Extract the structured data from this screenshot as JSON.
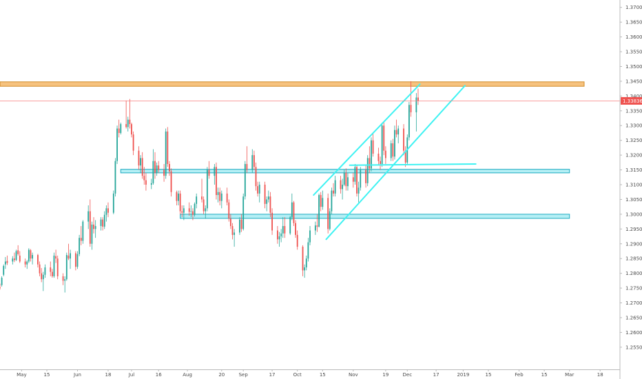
{
  "chart_data": {
    "type": "candlestick",
    "symbol_pair_axis": "right",
    "ylim": [
      1.2475,
      1.3725
    ],
    "y_ticks": [
      "1.25500",
      "1.26000",
      "1.26500",
      "1.27000",
      "1.27500",
      "1.28000",
      "1.28500",
      "1.29000",
      "1.29500",
      "1.30000",
      "1.30500",
      "1.31000",
      "1.31500",
      "1.32000",
      "1.32500",
      "1.33000",
      "1.33500",
      "1.34000",
      "1.34500",
      "1.35000",
      "1.35500",
      "1.36000",
      "1.36500",
      "1.37000"
    ],
    "x_ticks": [
      {
        "label": "May",
        "day": 0
      },
      {
        "label": "15",
        "day": 14
      },
      {
        "label": "Jun",
        "day": 31
      },
      {
        "label": "18",
        "day": 48
      },
      {
        "label": "Jul",
        "day": 61
      },
      {
        "label": "16",
        "day": 76
      },
      {
        "label": "Aug",
        "day": 92
      },
      {
        "label": "20",
        "day": 111
      },
      {
        "label": "Sep",
        "day": 123
      },
      {
        "label": "17",
        "day": 139
      },
      {
        "label": "Oct",
        "day": 153
      },
      {
        "label": "15",
        "day": 167
      },
      {
        "label": "Nov",
        "day": 184
      },
      {
        "label": "19",
        "day": 202
      },
      {
        "label": "Dec",
        "day": 214
      },
      {
        "label": "17",
        "day": 230
      },
      {
        "label": "2019",
        "day": 245
      },
      {
        "label": "15",
        "day": 259
      },
      {
        "label": "Feb",
        "day": 276
      },
      {
        "label": "15",
        "day": 290
      },
      {
        "label": "Mar",
        "day": 304
      },
      {
        "label": "18",
        "day": 321
      }
    ],
    "x_range_days": [
      -12,
      332
    ],
    "last_price": "1.33836",
    "last_price_value": 1.33836,
    "colors": {
      "up": "#26a69a",
      "down": "#ef5350",
      "channel": "#3ef2f2",
      "zone_fill": "#a8ecf3",
      "zone_border": "#1ba9c0",
      "resistance_fill": "#f6c27e",
      "resistance_border": "#d08b27",
      "price_line": "#f77b7b",
      "axis": "#b8b8b8",
      "text": "#4a4a4a"
    },
    "resistance_zone": {
      "y_low": 1.3433,
      "y_high": 1.3448
    },
    "support_zones": [
      {
        "x_start": 55,
        "y_low": 1.314,
        "y_high": 1.3152
      },
      {
        "x_start": 88,
        "y_low": 1.2986,
        "y_high": 1.3
      }
    ],
    "support_zone_x_end": 304,
    "channel_lines": [
      {
        "x1": 162,
        "y1": 1.3065,
        "x2": 221,
        "y2": 1.344
      },
      {
        "x1": 169,
        "y1": 1.2915,
        "x2": 246,
        "y2": 1.3435
      },
      {
        "x1": 182,
        "y1": 1.3166,
        "x2": 252,
        "y2": 1.317
      }
    ],
    "candles": [
      [
        -12,
        1.2752,
        1.2765,
        1.2745,
        1.275
      ],
      [
        -11,
        1.276,
        1.279,
        1.2755,
        1.2785
      ],
      [
        -10,
        1.2795,
        1.283,
        1.279,
        1.2825
      ],
      [
        -9,
        1.283,
        1.2855,
        1.2815,
        1.284
      ],
      [
        -8,
        1.2842,
        1.286,
        1.2828,
        1.2835
      ],
      [
        -5,
        1.284,
        1.2858,
        1.283,
        1.285
      ],
      [
        -4,
        1.285,
        1.287,
        1.2838,
        1.2845
      ],
      [
        -3,
        1.2845,
        1.288,
        1.2842,
        1.2875
      ],
      [
        -2,
        1.2878,
        1.2895,
        1.286,
        1.2865
      ],
      [
        -1,
        1.286,
        1.2875,
        1.2835,
        1.284
      ],
      [
        2,
        1.284,
        1.285,
        1.282,
        1.283
      ],
      [
        3,
        1.283,
        1.2845,
        1.2815,
        1.284
      ],
      [
        4,
        1.284,
        1.2885,
        1.2835,
        1.288
      ],
      [
        5,
        1.2878,
        1.2882,
        1.284,
        1.285
      ],
      [
        6,
        1.285,
        1.287,
        1.283,
        1.2862
      ],
      [
        9,
        1.2862,
        1.2866,
        1.282,
        1.283
      ],
      [
        10,
        1.283,
        1.284,
        1.279,
        1.28
      ],
      [
        11,
        1.28,
        1.2818,
        1.277,
        1.278
      ],
      [
        12,
        1.278,
        1.2805,
        1.274,
        1.2795
      ],
      [
        13,
        1.2795,
        1.283,
        1.2785,
        1.282
      ],
      [
        16,
        1.282,
        1.284,
        1.279,
        1.2805
      ],
      [
        17,
        1.2805,
        1.2815,
        1.2785,
        1.279
      ],
      [
        18,
        1.279,
        1.287,
        1.2785,
        1.286
      ],
      [
        19,
        1.2858,
        1.288,
        1.2835,
        1.285
      ],
      [
        20,
        1.285,
        1.286,
        1.278,
        1.279
      ],
      [
        23,
        1.279,
        1.28,
        1.276,
        1.2775
      ],
      [
        24,
        1.2775,
        1.279,
        1.2735,
        1.278
      ],
      [
        25,
        1.278,
        1.287,
        1.2775,
        1.2862
      ],
      [
        26,
        1.286,
        1.29,
        1.2845,
        1.285
      ],
      [
        27,
        1.285,
        1.288,
        1.2815,
        1.2868
      ],
      [
        30,
        1.2868,
        1.2875,
        1.281,
        1.2822
      ],
      [
        31,
        1.2822,
        1.2875,
        1.2815,
        1.2865
      ],
      [
        32,
        1.2865,
        1.293,
        1.2858,
        1.292
      ],
      [
        33,
        1.292,
        1.296,
        1.2895,
        1.291
      ],
      [
        34,
        1.291,
        1.298,
        1.29,
        1.2975
      ],
      [
        37,
        1.2975,
        1.303,
        1.295,
        1.301
      ],
      [
        38,
        1.301,
        1.305,
        1.289,
        1.29
      ],
      [
        39,
        1.29,
        1.2975,
        1.288,
        1.2965
      ],
      [
        40,
        1.2965,
        1.299,
        1.2935,
        1.295
      ],
      [
        41,
        1.295,
        1.298,
        1.292,
        1.296
      ],
      [
        44,
        1.296,
        1.299,
        1.2945,
        1.2982
      ],
      [
        45,
        1.2982,
        1.299,
        1.2945,
        1.2958
      ],
      [
        46,
        1.2958,
        1.301,
        1.295,
        1.2998
      ],
      [
        47,
        1.2998,
        1.303,
        1.2975,
        1.302
      ],
      [
        48,
        1.302,
        1.304,
        1.299,
        1.3005
      ],
      [
        51,
        1.3005,
        1.308,
        1.3,
        1.307
      ],
      [
        52,
        1.307,
        1.319,
        1.306,
        1.318
      ],
      [
        53,
        1.318,
        1.33,
        1.317,
        1.329
      ],
      [
        54,
        1.329,
        1.332,
        1.326,
        1.3275
      ],
      [
        55,
        1.3275,
        1.331,
        1.327,
        1.3305
      ],
      [
        58,
        1.3305,
        1.3385,
        1.329,
        1.3295
      ],
      [
        59,
        1.3295,
        1.333,
        1.328,
        1.332
      ],
      [
        60,
        1.332,
        1.339,
        1.329,
        1.3305
      ],
      [
        61,
        1.3305,
        1.331,
        1.326,
        1.327
      ],
      [
        62,
        1.327,
        1.328,
        1.32,
        1.3215
      ],
      [
        65,
        1.3215,
        1.323,
        1.315,
        1.3165
      ],
      [
        66,
        1.3165,
        1.32,
        1.314,
        1.319
      ],
      [
        67,
        1.319,
        1.321,
        1.312,
        1.313
      ],
      [
        68,
        1.313,
        1.316,
        1.31,
        1.3115
      ],
      [
        69,
        1.3115,
        1.314,
        1.308,
        1.31
      ],
      [
        72,
        1.31,
        1.312,
        1.3085,
        1.3105
      ],
      [
        73,
        1.3105,
        1.322,
        1.31,
        1.318
      ],
      [
        74,
        1.318,
        1.321,
        1.312,
        1.314
      ],
      [
        75,
        1.314,
        1.3175,
        1.313,
        1.3165
      ],
      [
        76,
        1.3165,
        1.318,
        1.314,
        1.315
      ],
      [
        79,
        1.315,
        1.317,
        1.311,
        1.313
      ],
      [
        80,
        1.313,
        1.329,
        1.312,
        1.328
      ],
      [
        81,
        1.328,
        1.3295,
        1.316,
        1.317
      ],
      [
        82,
        1.317,
        1.318,
        1.313,
        1.3145
      ],
      [
        83,
        1.3145,
        1.3155,
        1.306,
        1.3075
      ],
      [
        86,
        1.3075,
        1.308,
        1.303,
        1.3045
      ],
      [
        87,
        1.3045,
        1.308,
        1.303,
        1.307
      ],
      [
        88,
        1.307,
        1.308,
        1.3,
        1.301
      ],
      [
        89,
        1.301,
        1.303,
        1.299,
        1.3005
      ],
      [
        90,
        1.3005,
        1.303,
        1.298,
        1.302
      ],
      [
        93,
        1.302,
        1.304,
        1.2995,
        1.3008
      ],
      [
        94,
        1.3008,
        1.303,
        1.299,
        1.301
      ],
      [
        95,
        1.301,
        1.302,
        1.298,
        1.2998
      ],
      [
        96,
        1.2998,
        1.304,
        1.2992,
        1.3035
      ],
      [
        97,
        1.3035,
        1.307,
        1.302,
        1.306
      ],
      [
        100,
        1.306,
        1.312,
        1.304,
        1.305
      ],
      [
        101,
        1.305,
        1.306,
        1.3,
        1.301
      ],
      [
        102,
        1.301,
        1.303,
        1.2985,
        1.302
      ],
      [
        103,
        1.302,
        1.316,
        1.301,
        1.315
      ],
      [
        104,
        1.315,
        1.318,
        1.312,
        1.313
      ],
      [
        107,
        1.313,
        1.317,
        1.31,
        1.316
      ],
      [
        108,
        1.316,
        1.3175,
        1.305,
        1.3065
      ],
      [
        109,
        1.3065,
        1.309,
        1.304,
        1.3075
      ],
      [
        110,
        1.3075,
        1.309,
        1.303,
        1.3045
      ],
      [
        111,
        1.3045,
        1.308,
        1.302,
        1.307
      ],
      [
        114,
        1.307,
        1.309,
        1.303,
        1.304
      ],
      [
        115,
        1.304,
        1.305,
        1.2975,
        1.2985
      ],
      [
        116,
        1.2985,
        1.3,
        1.295,
        1.296
      ],
      [
        117,
        1.296,
        1.297,
        1.2915,
        1.293
      ],
      [
        118,
        1.293,
        1.295,
        1.289,
        1.2938
      ],
      [
        121,
        1.2938,
        1.299,
        1.293,
        1.2982
      ],
      [
        122,
        1.2982,
        1.3,
        1.294,
        1.295
      ],
      [
        123,
        1.295,
        1.307,
        1.2945,
        1.306
      ],
      [
        124,
        1.306,
        1.318,
        1.305,
        1.317
      ],
      [
        125,
        1.317,
        1.323,
        1.314,
        1.315
      ],
      [
        128,
        1.315,
        1.322,
        1.314,
        1.32
      ],
      [
        129,
        1.32,
        1.3215,
        1.315,
        1.316
      ],
      [
        130,
        1.316,
        1.3175,
        1.308,
        1.3095
      ],
      [
        131,
        1.3095,
        1.311,
        1.306,
        1.307
      ],
      [
        132,
        1.307,
        1.311,
        1.304,
        1.31
      ],
      [
        135,
        1.31,
        1.311,
        1.302,
        1.3035
      ],
      [
        136,
        1.3035,
        1.306,
        1.301,
        1.305
      ],
      [
        137,
        1.305,
        1.308,
        1.304,
        1.306
      ],
      [
        138,
        1.306,
        1.3075,
        1.299,
        1.3005
      ],
      [
        139,
        1.3005,
        1.302,
        1.293,
        1.2945
      ],
      [
        142,
        1.2945,
        1.296,
        1.29,
        1.2915
      ],
      [
        143,
        1.2915,
        1.294,
        1.289,
        1.2925
      ],
      [
        144,
        1.2925,
        1.295,
        1.2905,
        1.2935
      ],
      [
        145,
        1.2935,
        1.299,
        1.292,
        1.296
      ],
      [
        146,
        1.296,
        1.299,
        1.292,
        1.2935
      ],
      [
        149,
        1.2935,
        1.2995,
        1.293,
        1.299
      ],
      [
        150,
        1.299,
        1.307,
        1.298,
        1.304
      ],
      [
        151,
        1.304,
        1.3045,
        1.296,
        1.297
      ],
      [
        152,
        1.297,
        1.298,
        1.292,
        1.293
      ],
      [
        153,
        1.293,
        1.2945,
        1.288,
        1.289
      ],
      [
        156,
        1.289,
        1.2895,
        1.279,
        1.281
      ],
      [
        157,
        1.281,
        1.283,
        1.2785,
        1.282
      ],
      [
        158,
        1.282,
        1.286,
        1.281,
        1.285
      ],
      [
        159,
        1.285,
        1.292,
        1.284,
        1.2905
      ],
      [
        160,
        1.2905,
        1.296,
        1.2895,
        1.2945
      ],
      [
        163,
        1.2945,
        1.2975,
        1.293,
        1.2962
      ],
      [
        164,
        1.2962,
        1.3,
        1.294,
        1.2958
      ],
      [
        165,
        1.2958,
        1.307,
        1.2955,
        1.3065
      ],
      [
        166,
        1.3065,
        1.3075,
        1.301,
        1.3025
      ],
      [
        167,
        1.3025,
        1.308,
        1.3015,
        1.3055
      ],
      [
        170,
        1.3055,
        1.307,
        1.2935,
        1.295
      ],
      [
        171,
        1.295,
        1.302,
        1.2945,
        1.301
      ],
      [
        172,
        1.301,
        1.309,
        1.3,
        1.308
      ],
      [
        173,
        1.308,
        1.3105,
        1.306,
        1.307
      ],
      [
        174,
        1.307,
        1.313,
        1.306,
        1.3115
      ],
      [
        177,
        1.3115,
        1.313,
        1.307,
        1.3085
      ],
      [
        178,
        1.3085,
        1.312,
        1.305,
        1.31
      ],
      [
        179,
        1.31,
        1.315,
        1.3095,
        1.314
      ],
      [
        180,
        1.314,
        1.3155,
        1.308,
        1.3095
      ],
      [
        181,
        1.3095,
        1.314,
        1.308,
        1.3125
      ],
      [
        184,
        1.3125,
        1.314,
        1.309,
        1.311
      ],
      [
        185,
        1.311,
        1.317,
        1.31,
        1.316
      ],
      [
        186,
        1.316,
        1.3165,
        1.306,
        1.307
      ],
      [
        187,
        1.307,
        1.311,
        1.304,
        1.309
      ],
      [
        188,
        1.309,
        1.316,
        1.308,
        1.315
      ],
      [
        191,
        1.315,
        1.3165,
        1.309,
        1.3105
      ],
      [
        192,
        1.3105,
        1.32,
        1.3095,
        1.319
      ],
      [
        193,
        1.319,
        1.323,
        1.314,
        1.3155
      ],
      [
        194,
        1.3155,
        1.326,
        1.3145,
        1.325
      ],
      [
        195,
        1.325,
        1.3275,
        1.3195,
        1.3205
      ],
      [
        198,
        1.3205,
        1.3225,
        1.3165,
        1.318
      ],
      [
        199,
        1.318,
        1.3195,
        1.315,
        1.317
      ],
      [
        200,
        1.317,
        1.331,
        1.316,
        1.33
      ],
      [
        201,
        1.33,
        1.3315,
        1.32,
        1.3215
      ],
      [
        202,
        1.3215,
        1.323,
        1.317,
        1.319
      ],
      [
        205,
        1.319,
        1.325,
        1.318,
        1.324
      ],
      [
        206,
        1.324,
        1.3255,
        1.318,
        1.3195
      ],
      [
        207,
        1.3195,
        1.33,
        1.3185,
        1.3285
      ],
      [
        208,
        1.3285,
        1.332,
        1.326,
        1.327
      ],
      [
        209,
        1.327,
        1.33,
        1.324,
        1.329
      ],
      [
        212,
        1.329,
        1.3305,
        1.32,
        1.3215
      ],
      [
        213,
        1.3215,
        1.323,
        1.316,
        1.3175
      ],
      [
        214,
        1.3175,
        1.327,
        1.317,
        1.326
      ],
      [
        215,
        1.326,
        1.338,
        1.325,
        1.337
      ],
      [
        216,
        1.337,
        1.345,
        1.333,
        1.3345
      ],
      [
        219,
        1.3345,
        1.341,
        1.328,
        1.3395
      ],
      [
        220,
        1.3395,
        1.3425,
        1.337,
        1.3384
      ]
    ]
  }
}
